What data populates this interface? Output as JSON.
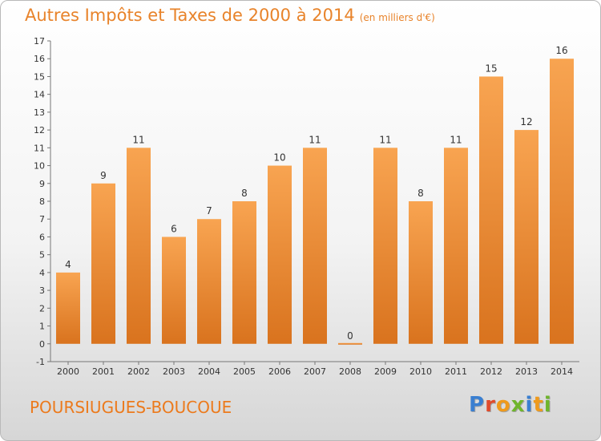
{
  "title": "Autres Impôts et Taxes de 2000 à 2014",
  "subtitle": "(en milliers d'€)",
  "commune": "POURSIUGUES-BOUCOUE",
  "brand": {
    "text": "Proxiti",
    "colors": [
      "#3a7fd1",
      "#e14b2b",
      "#ef9a1c",
      "#6fb52c",
      "#3a7fd1",
      "#ef9a1c",
      "#6fb52c"
    ]
  },
  "colors": {
    "bar_top": "#f8a451",
    "bar_bottom": "#d9731e",
    "text_accent": "#e8832a"
  },
  "chart_data": {
    "type": "bar",
    "title": "Autres Impôts et Taxes de 2000 à 2014",
    "subtitle": "(en milliers d'€)",
    "categories": [
      "2000",
      "2001",
      "2002",
      "2003",
      "2004",
      "2005",
      "2006",
      "2007",
      "2008",
      "2009",
      "2010",
      "2011",
      "2012",
      "2013",
      "2014"
    ],
    "values": [
      4,
      9,
      11,
      6,
      7,
      8,
      10,
      11,
      0,
      11,
      8,
      11,
      15,
      12,
      16
    ],
    "data_labels": [
      "4",
      "9",
      "11",
      "6",
      "7",
      "8",
      "10",
      "11",
      "0",
      "11",
      "8",
      "11",
      "15",
      "12",
      "16"
    ],
    "yticks": [
      "-1",
      "0",
      "1",
      "2",
      "3",
      "4",
      "5",
      "6",
      "7",
      "8",
      "9",
      "10",
      "11",
      "12",
      "13",
      "14",
      "15",
      "16",
      "17"
    ],
    "ylim": [
      -1,
      17
    ],
    "xlabel": "",
    "ylabel": "",
    "grid": false,
    "legend": "none"
  }
}
